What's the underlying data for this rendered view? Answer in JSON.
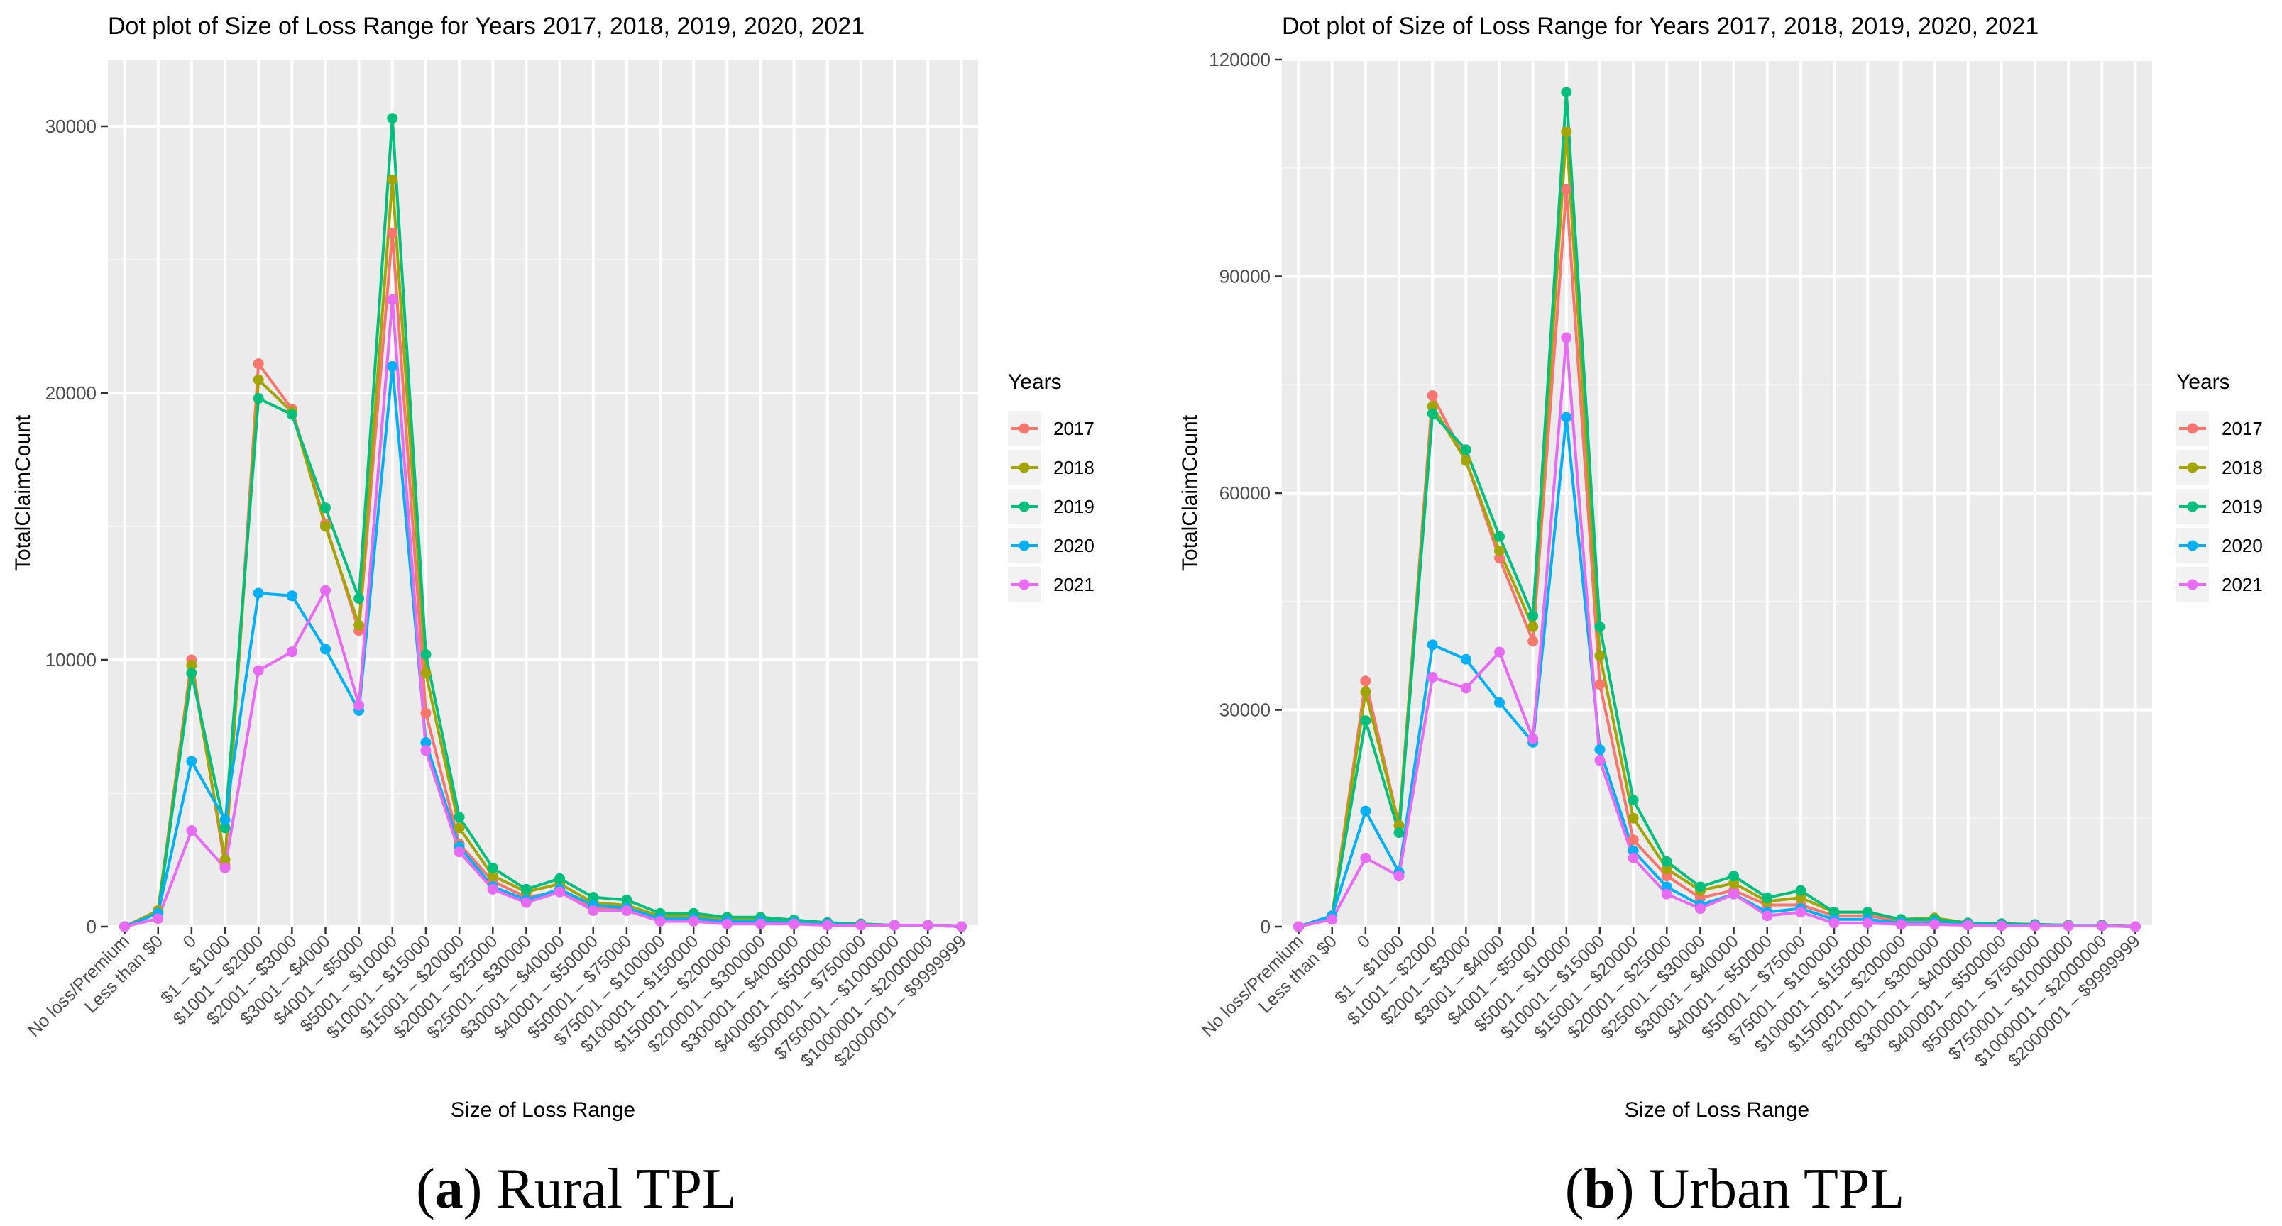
{
  "chart_data": [
    {
      "type": "line",
      "panel_label": "(a)",
      "panel_caption": "Rural TPL",
      "title": "Dot plot of Size of Loss Range for Years 2017, 2018, 2019, 2020, 2021",
      "xlabel": "Size of Loss Range",
      "ylabel": "TotalClaimCount",
      "ylim": [
        0,
        32500
      ],
      "yticks": [
        0,
        10000,
        20000,
        30000
      ],
      "ytick_labels": [
        "0",
        "10000",
        "20000",
        "30000"
      ],
      "grid": true,
      "legend_title": "Years",
      "legend_position": "right",
      "categories": [
        "No loss/Premium",
        "Less than $0",
        "0",
        "$1 – $1000",
        "$1001 – $2000",
        "$2001 – $3000",
        "$3001 – $4000",
        "$4001 – $5000",
        "$5001 – $10000",
        "$10001 – $15000",
        "$15001 – $20000",
        "$20001 – $25000",
        "$25001 – $30000",
        "$30001 – $40000",
        "$40001 – $50000",
        "$50001 – $75000",
        "$75001 – $100000",
        "$100001 – $150000",
        "$150001 – $200000",
        "$200001 – $300000",
        "$300001 – $400000",
        "$400001 – $500000",
        "$500001 – $750000",
        "$750001 – $1000000",
        "$1000001 – $2000000",
        "$2000001 – $9999999"
      ],
      "series": [
        {
          "name": "2017",
          "color": "#F8766D",
          "values": [
            0,
            600,
            10000,
            2300,
            21100,
            19400,
            15100,
            11100,
            26000,
            8000,
            3100,
            1700,
            1100,
            1300,
            700,
            700,
            300,
            300,
            200,
            200,
            150,
            100,
            100,
            50,
            50,
            0
          ]
        },
        {
          "name": "2018",
          "color": "#A3A500",
          "values": [
            0,
            600,
            9800,
            2500,
            20500,
            19300,
            15000,
            11300,
            28000,
            9500,
            3700,
            1900,
            1300,
            1600,
            900,
            800,
            400,
            400,
            300,
            300,
            200,
            150,
            100,
            50,
            50,
            0
          ]
        },
        {
          "name": "2019",
          "color": "#00BF7D",
          "values": [
            0,
            500,
            9500,
            3700,
            19800,
            19200,
            15700,
            12300,
            30300,
            10200,
            4100,
            2200,
            1400,
            1800,
            1100,
            1000,
            500,
            500,
            350,
            350,
            250,
            150,
            100,
            50,
            50,
            0
          ]
        },
        {
          "name": "2020",
          "color": "#00B0F6",
          "values": [
            0,
            500,
            6200,
            4000,
            12500,
            12400,
            10400,
            8100,
            21000,
            6900,
            3000,
            1500,
            1000,
            1400,
            800,
            700,
            300,
            300,
            200,
            200,
            150,
            100,
            50,
            50,
            50,
            0
          ]
        },
        {
          "name": "2021",
          "color": "#E76BF3",
          "values": [
            0,
            300,
            3600,
            2200,
            9600,
            10300,
            12600,
            8300,
            23500,
            6600,
            2800,
            1400,
            900,
            1300,
            600,
            600,
            200,
            200,
            100,
            100,
            100,
            50,
            50,
            50,
            50,
            0
          ]
        }
      ]
    },
    {
      "type": "line",
      "panel_label": "(b)",
      "panel_caption": "Urban TPL",
      "title": "Dot plot of Size of Loss Range for Years 2017, 2018, 2019, 2020, 2021",
      "xlabel": "Size of Loss Range",
      "ylabel": "TotalClaimCount",
      "ylim": [
        0,
        120000
      ],
      "yticks": [
        0,
        30000,
        60000,
        90000,
        120000
      ],
      "ytick_labels": [
        "0",
        "30000",
        "60000",
        "90000",
        "120000"
      ],
      "grid": true,
      "legend_title": "Years",
      "legend_position": "right",
      "categories": [
        "No loss/Premium",
        "Less than $0",
        "0",
        "$1 – $1000",
        "$1001 – $2000",
        "$2001 – $3000",
        "$3001 – $4000",
        "$4001 – $5000",
        "$5001 – $10000",
        "$10001 – $15000",
        "$15001 – $20000",
        "$20001 – $25000",
        "$25001 – $30000",
        "$30001 – $40000",
        "$40001 – $50000",
        "$50001 – $75000",
        "$75001 – $100000",
        "$100001 – $150000",
        "$150001 – $200000",
        "$200001 – $300000",
        "$300001 – $400000",
        "$400001 – $500000",
        "$500001 – $750000",
        "$750001 – $1000000",
        "$1000001 – $2000000",
        "$2000001 – $9999999"
      ],
      "series": [
        {
          "name": "2017",
          "color": "#F8766D",
          "values": [
            0,
            1500,
            34000,
            14000,
            73500,
            64500,
            51000,
            39500,
            102000,
            33500,
            12000,
            7000,
            4000,
            5000,
            3000,
            3000,
            1500,
            1500,
            800,
            800,
            400,
            300,
            300,
            200,
            200,
            0
          ]
        },
        {
          "name": "2018",
          "color": "#A3A500",
          "values": [
            0,
            1500,
            32500,
            14000,
            72000,
            64500,
            52000,
            41500,
            110000,
            37500,
            15000,
            8000,
            5000,
            6000,
            3500,
            4000,
            2000,
            2000,
            1000,
            1200,
            500,
            400,
            300,
            200,
            200,
            0
          ]
        },
        {
          "name": "2019",
          "color": "#00BF7D",
          "values": [
            0,
            1500,
            28500,
            13000,
            71000,
            66000,
            54000,
            43000,
            115500,
            41500,
            17500,
            9000,
            5500,
            7000,
            4000,
            5000,
            2000,
            2000,
            1000,
            1000,
            500,
            400,
            300,
            200,
            200,
            0
          ]
        },
        {
          "name": "2020",
          "color": "#00B0F6",
          "values": [
            0,
            1500,
            16000,
            7500,
            39000,
            37000,
            31000,
            25500,
            70500,
            24500,
            10500,
            5500,
            3000,
            4500,
            2000,
            2500,
            1000,
            1000,
            500,
            500,
            300,
            200,
            200,
            100,
            100,
            0
          ]
        },
        {
          "name": "2021",
          "color": "#E76BF3",
          "values": [
            0,
            1000,
            9500,
            7000,
            34500,
            33000,
            38000,
            26000,
            81500,
            23000,
            9500,
            4500,
            2500,
            4500,
            1500,
            2000,
            500,
            500,
            300,
            300,
            200,
            100,
            100,
            100,
            100,
            0
          ]
        }
      ]
    }
  ]
}
